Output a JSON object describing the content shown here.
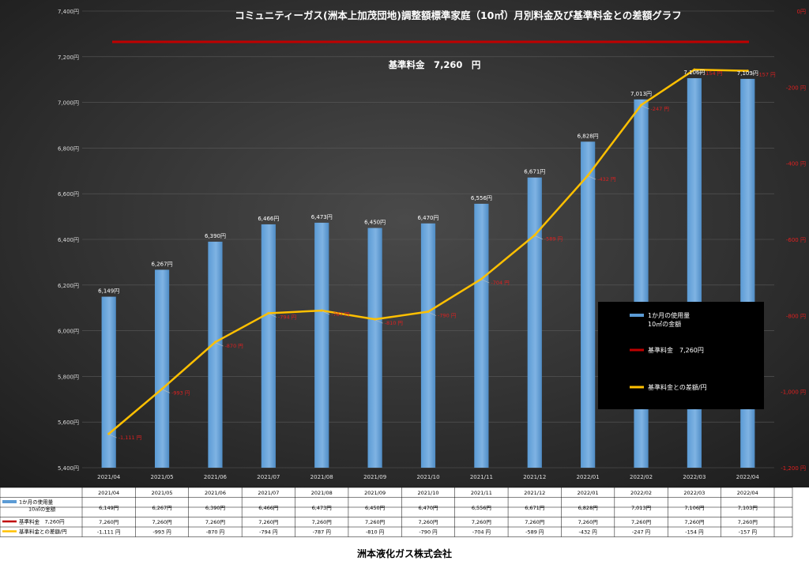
{
  "chart_data": {
    "type": "bar",
    "title": "コミュニティーガス(洲本上加茂団地)調整額標準家庭（10㎥）月別料金及び基準料金との差額グラフ",
    "base_label": "基準料金　7,260　円",
    "categories": [
      "2021/04",
      "2021/05",
      "2021/06",
      "2021/07",
      "2021/08",
      "2021/09",
      "2021/10",
      "2021/11",
      "2021/12",
      "2022/01",
      "2022/02",
      "2022/03",
      "2022/04"
    ],
    "series": [
      {
        "name": "1か月の使用量\n10㎥の金額",
        "type": "bar",
        "axis": "left",
        "color": "#5b9bd5",
        "values": [
          6149,
          6267,
          6390,
          6466,
          6473,
          6450,
          6470,
          6556,
          6671,
          6828,
          7013,
          7106,
          7103
        ],
        "labels": [
          "6,149円",
          "6,267円",
          "6,390円",
          "6,466円",
          "6,473円",
          "6,450円",
          "6,470円",
          "6,556円",
          "6,671円",
          "6,828円",
          "7,013円",
          "7,106円",
          "7,103円"
        ]
      },
      {
        "name": "基準料金　7,260円",
        "type": "line",
        "axis": "left",
        "color": "#c00000",
        "values": [
          7260,
          7260,
          7260,
          7260,
          7260,
          7260,
          7260,
          7260,
          7260,
          7260,
          7260,
          7260,
          7260
        ],
        "labels": [
          "7,260円",
          "7,260円",
          "7,260円",
          "7,260円",
          "7,260円",
          "7,260円",
          "7,260円",
          "7,260円",
          "7,260円",
          "7,260円",
          "7,260円",
          "7,260円",
          "7,260円"
        ]
      },
      {
        "name": "基準料金との差額/円",
        "type": "line",
        "axis": "right",
        "color": "#ffc000",
        "values": [
          -1111,
          -993,
          -870,
          -794,
          -787,
          -810,
          -790,
          -704,
          -589,
          -432,
          -247,
          -154,
          -157
        ],
        "labels": [
          "-1,111 円",
          "-993 円",
          "-870 円",
          "-794 円",
          "-787 円",
          "-810 円",
          "-790 円",
          "-704 円",
          "-589 円",
          "-432 円",
          "-247 円",
          "-154 円",
          "-157 円"
        ]
      }
    ],
    "y_left": {
      "min": 5400,
      "max": 7400,
      "step": 200,
      "ticks": [
        "5,400円",
        "5,600円",
        "5,800円",
        "6,000円",
        "6,200円",
        "6,400円",
        "6,600円",
        "6,800円",
        "7,000円",
        "7,200円",
        "7,400円"
      ]
    },
    "y_right": {
      "min": -1200,
      "max": 0,
      "step": 200,
      "ticks": [
        "-1,200 円",
        "-1,000 円",
        "-800 円",
        "-600 円",
        "-400 円",
        "-200 円",
        "0円"
      ]
    },
    "legend_position": "right",
    "grid": true,
    "data_table": true
  },
  "footer": {
    "company": "洲本液化ガス株式会社"
  }
}
